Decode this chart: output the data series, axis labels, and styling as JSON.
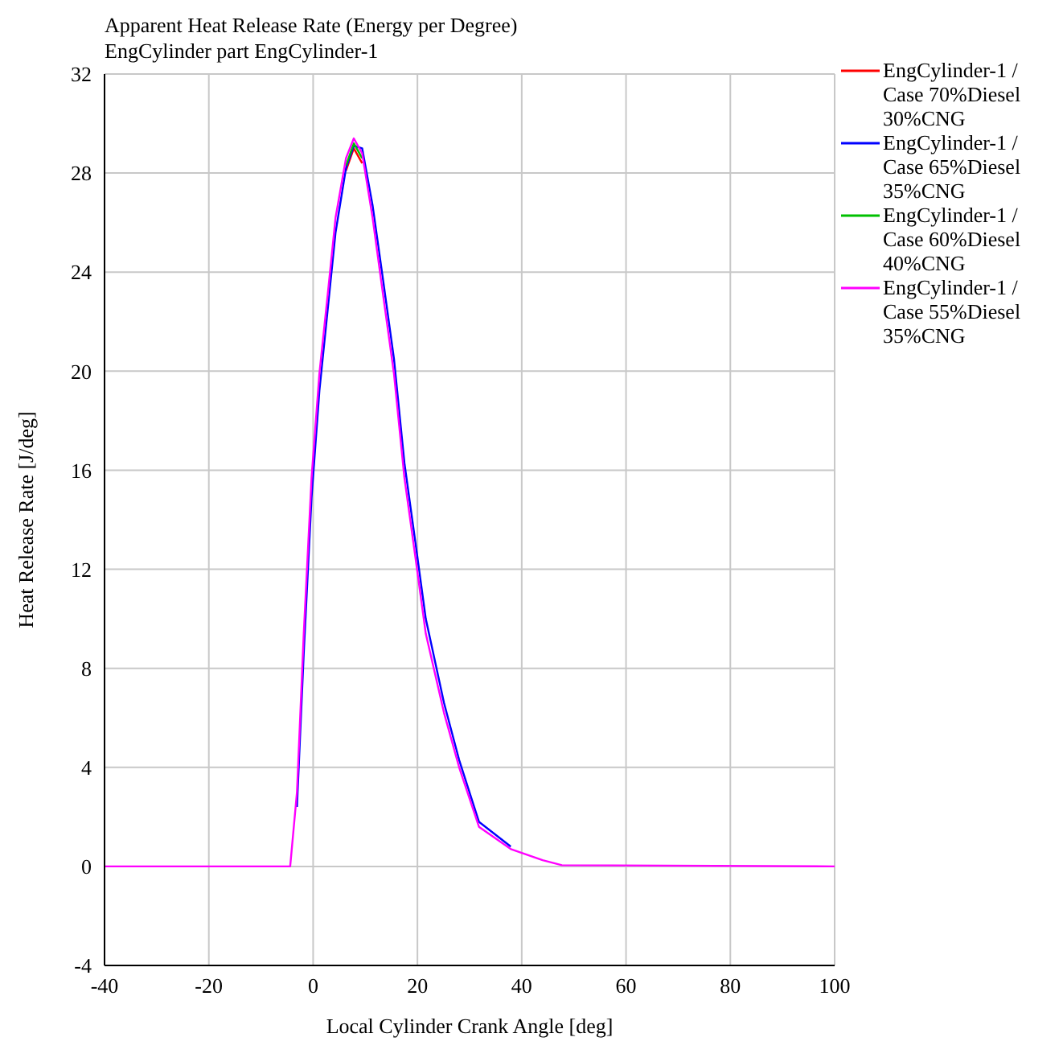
{
  "chart_data": {
    "type": "line",
    "title": "Apparent Heat Release Rate (Energy per Degree)",
    "subtitle": "EngCylinder part EngCylinder-1",
    "xlabel": "Local Cylinder Crank Angle [deg]",
    "ylabel": "Heat Release Rate  [J/deg]",
    "x": [
      -40,
      -4.4,
      -3.1,
      -1.8,
      -0.3,
      1.2,
      2.8,
      4.3,
      6.3,
      7.8,
      9.4,
      11.4,
      13.4,
      15.5,
      17.5,
      19.6,
      21.6,
      25.1,
      28,
      31.8,
      37.9,
      44,
      47.7,
      100
    ],
    "series": [
      {
        "name": "EngCylinder-1 / Case 70%Diesel 30%CNG",
        "color": "#ff0000",
        "values": [
          null,
          null,
          null,
          null,
          null,
          null,
          null,
          null,
          28.1,
          29.0,
          28.4,
          null,
          null,
          null,
          null,
          null,
          null,
          null,
          null,
          null,
          null,
          null,
          null,
          null
        ]
      },
      {
        "name": "EngCylinder-1 / Case 65%Diesel 35%CNG",
        "color": "#0000ff",
        "values": [
          null,
          null,
          2.4,
          8.6,
          14.9,
          19.2,
          22.5,
          25.6,
          28.2,
          29.1,
          29.0,
          26.7,
          23.7,
          20.5,
          16.3,
          13.1,
          10.0,
          6.6,
          4.3,
          1.8,
          0.8,
          null,
          null,
          null
        ]
      },
      {
        "name": "EngCylinder-1 / Case 60%Diesel 40%CNG",
        "color": "#00c000",
        "values": [
          null,
          null,
          null,
          null,
          null,
          null,
          null,
          null,
          28.3,
          29.2,
          28.6,
          null,
          null,
          null,
          null,
          null,
          null,
          null,
          null,
          null,
          null,
          null,
          null,
          null
        ]
      },
      {
        "name": "EngCylinder-1 / Case 55%Diesel 35%CNG",
        "color": "#ff00ff",
        "values": [
          0,
          0,
          3.0,
          9.4,
          15.7,
          19.9,
          23.1,
          26.2,
          28.6,
          29.4,
          28.8,
          26.2,
          23.1,
          19.9,
          15.7,
          12.5,
          9.4,
          6.2,
          4.0,
          1.6,
          0.7,
          0.25,
          0.05,
          0
        ]
      }
    ],
    "xlim": [
      -40,
      100
    ],
    "xticks": [
      -40,
      -20,
      0,
      20,
      40,
      60,
      80,
      100
    ],
    "ylim": [
      -4,
      32
    ],
    "yticks": [
      -4,
      0,
      4,
      8,
      12,
      16,
      20,
      24,
      28,
      32
    ],
    "grid": true,
    "legend": "right",
    "marker": "none",
    "line_style": "solid"
  }
}
